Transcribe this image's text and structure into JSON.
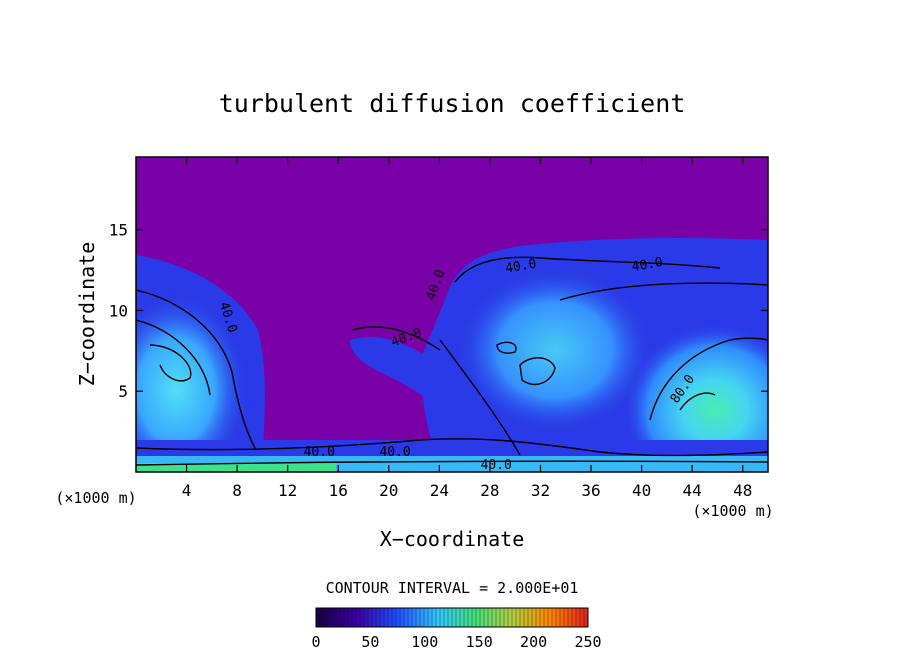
{
  "chart_data": {
    "type": "heatmap",
    "title": "turbulent diffusion coefficient",
    "xlabel": "X−coordinate",
    "ylabel": "Z−coordinate",
    "x_unit_left": "(×1000 m)",
    "x_unit_right": "(×1000 m)",
    "xlim": [
      0,
      50
    ],
    "ylim": [
      0,
      19.5
    ],
    "x_ticks": [
      4,
      8,
      12,
      16,
      20,
      24,
      28,
      32,
      36,
      40,
      44,
      48
    ],
    "y_ticks": [
      5,
      10,
      15
    ],
    "contour_interval_text": "CONTOUR INTERVAL = 2.000E+01",
    "contour_labels": [
      {
        "text": "40.0",
        "x": 7.0,
        "y": 9.5,
        "rot": 72
      },
      {
        "text": "40.0",
        "x": 14.5,
        "y": 1.0,
        "rot": 0
      },
      {
        "text": "40.0",
        "x": 20.5,
        "y": 1.0,
        "rot": 0
      },
      {
        "text": "40.0",
        "x": 21.5,
        "y": 8.1,
        "rot": -20
      },
      {
        "text": "40.0",
        "x": 24.0,
        "y": 11.5,
        "rot": -70
      },
      {
        "text": "40.0",
        "x": 30.5,
        "y": 12.5,
        "rot": -10
      },
      {
        "text": "40.0",
        "x": 40.5,
        "y": 12.6,
        "rot": -10
      },
      {
        "text": "80.0",
        "x": 43.5,
        "y": 5.0,
        "rot": -55
      },
      {
        "text": "40.0",
        "x": 28.5,
        "y": 0.2,
        "rot": 0
      }
    ],
    "colorbar": {
      "min": 0,
      "max": 250,
      "ticks": [
        "0",
        "50",
        "100",
        "150",
        "200",
        "250"
      ],
      "colors": [
        "#1a0044",
        "#3a00a8",
        "#2050ff",
        "#33c8ff",
        "#40e080",
        "#b0d040",
        "#ff8800",
        "#e02020"
      ]
    },
    "field_colors": {
      "background": "#7a00a8",
      "low": "#2a3ae8",
      "mid": "#2f8cff",
      "high": "#49d6f2",
      "peak": "#3fe88a"
    }
  }
}
